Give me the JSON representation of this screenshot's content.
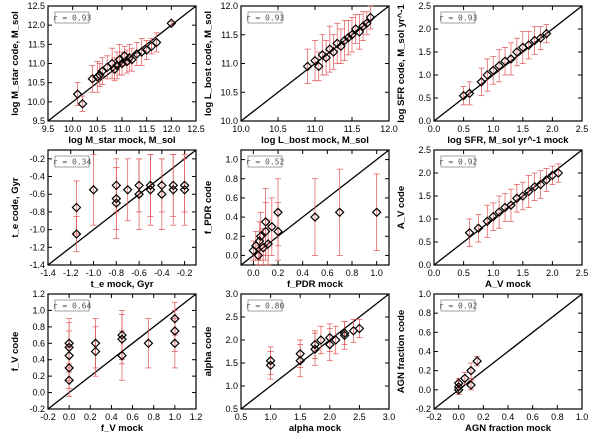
{
  "chart_data": [
    {
      "type": "scatter",
      "xlabel": "log M_star mock, M_sol",
      "ylabel": "log M_star code, M_sol",
      "annotation": "r = 0.93",
      "xlim": [
        9.5,
        12.5
      ],
      "ylim": [
        9.5,
        12.5
      ],
      "xticks": [
        9.5,
        10.0,
        10.5,
        11.0,
        11.5,
        12.0,
        12.5
      ],
      "yticks": [
        9.5,
        10.0,
        10.5,
        11.0,
        11.5,
        12.0,
        12.5
      ],
      "x": [
        10.1,
        10.2,
        10.4,
        10.5,
        10.55,
        10.6,
        10.7,
        10.8,
        10.85,
        10.9,
        10.95,
        11.0,
        11.05,
        11.1,
        11.15,
        11.2,
        11.3,
        11.4,
        11.5,
        11.6,
        11.7,
        12.0
      ],
      "y": [
        10.2,
        9.95,
        10.6,
        10.65,
        10.7,
        10.8,
        10.9,
        11.0,
        10.85,
        10.95,
        11.1,
        11.0,
        11.2,
        11.05,
        11.15,
        11.1,
        11.25,
        11.3,
        11.35,
        11.45,
        11.55,
        12.05
      ],
      "yerr": [
        0.3,
        0.2,
        0.35,
        0.4,
        0.3,
        0.35,
        0.3,
        0.4,
        0.3,
        0.35,
        0.4,
        0.3,
        0.25,
        0.3,
        0.35,
        0.3,
        0.3,
        0.35,
        0.25,
        0.2,
        0.25,
        0.05
      ]
    },
    {
      "type": "scatter",
      "xlabel": "log L_bost mock, M_sol",
      "ylabel": "log L_bost code, M_sol",
      "annotation": "r = 0.93",
      "xlim": [
        10.0,
        12.0
      ],
      "ylim": [
        10.0,
        12.0
      ],
      "xticks": [
        10.0,
        10.5,
        11.0,
        11.5,
        12.0
      ],
      "yticks": [
        10.0,
        10.5,
        11.0,
        11.5,
        12.0
      ],
      "x": [
        10.9,
        11.0,
        11.05,
        11.1,
        11.15,
        11.2,
        11.25,
        11.3,
        11.35,
        11.4,
        11.45,
        11.5,
        11.55,
        11.6,
        11.65,
        11.7,
        11.75
      ],
      "y": [
        10.95,
        11.05,
        10.95,
        11.15,
        11.1,
        11.25,
        11.2,
        11.35,
        11.3,
        11.4,
        11.45,
        11.5,
        11.6,
        11.55,
        11.65,
        11.7,
        11.8
      ],
      "yerr": [
        0.3,
        0.35,
        0.25,
        0.35,
        0.3,
        0.4,
        0.3,
        0.35,
        0.3,
        0.35,
        0.3,
        0.3,
        0.25,
        0.3,
        0.25,
        0.2,
        0.2
      ]
    },
    {
      "type": "scatter",
      "xlabel": "log SFR, M_sol yr^-1 mock",
      "ylabel": "log SFR code, M_sol yr^-1",
      "annotation": "r = 0.93",
      "xlim": [
        0.0,
        2.5
      ],
      "ylim": [
        0.0,
        2.5
      ],
      "xticks": [
        0.0,
        0.5,
        1.0,
        1.5,
        2.0,
        2.5
      ],
      "yticks": [
        0.0,
        0.5,
        1.0,
        1.5,
        2.0,
        2.5
      ],
      "x": [
        0.5,
        0.6,
        0.8,
        0.9,
        1.0,
        1.1,
        1.2,
        1.3,
        1.4,
        1.5,
        1.6,
        1.7,
        1.8,
        1.9
      ],
      "y": [
        0.55,
        0.6,
        0.85,
        1.0,
        1.1,
        1.2,
        1.3,
        1.35,
        1.5,
        1.6,
        1.65,
        1.75,
        1.8,
        1.9
      ],
      "yerr": [
        0.2,
        0.25,
        0.3,
        0.35,
        0.3,
        0.35,
        0.3,
        0.35,
        0.3,
        0.35,
        0.3,
        0.3,
        0.25,
        0.2
      ]
    },
    {
      "type": "scatter",
      "xlabel": "t_e mock, Gyr",
      "ylabel": "t_e code, Gyr",
      "annotation": "r = 0.34",
      "xlim": [
        -1.4,
        -0.1
      ],
      "ylim": [
        -1.4,
        -0.1
      ],
      "xticks": [
        -1.4,
        -1.2,
        -1.0,
        -0.8,
        -0.6,
        -0.4,
        -0.2
      ],
      "yticks": [
        -1.4,
        -1.2,
        -1.0,
        -0.8,
        -0.6,
        -0.4,
        -0.2
      ],
      "x": [
        -1.15,
        -1.15,
        -1.0,
        -0.8,
        -0.8,
        -0.8,
        -0.7,
        -0.6,
        -0.6,
        -0.5,
        -0.5,
        -0.4,
        -0.4,
        -0.3,
        -0.3,
        -0.2,
        -0.2
      ],
      "y": [
        -1.05,
        -0.75,
        -0.55,
        -0.5,
        -0.65,
        -0.7,
        -0.55,
        -0.5,
        -0.6,
        -0.5,
        -0.55,
        -0.5,
        -0.6,
        -0.5,
        -0.55,
        -0.5,
        -0.55
      ],
      "yerr": [
        0.2,
        0.3,
        0.4,
        0.3,
        0.35,
        0.4,
        0.35,
        0.3,
        0.4,
        0.35,
        0.4,
        0.3,
        0.4,
        0.35,
        0.4,
        0.3,
        0.4
      ]
    },
    {
      "type": "scatter",
      "xlabel": "f_PDR mock",
      "ylabel": "f_PDR code",
      "annotation": "r = 0.52",
      "xlim": [
        -0.1,
        1.1
      ],
      "ylim": [
        -0.1,
        1.1
      ],
      "xticks": [
        0.0,
        0.2,
        0.4,
        0.6,
        0.8,
        1.0
      ],
      "yticks": [
        0.0,
        0.2,
        0.4,
        0.6,
        0.8,
        1.0
      ],
      "x": [
        0.0,
        0.02,
        0.04,
        0.05,
        0.06,
        0.08,
        0.1,
        0.1,
        0.12,
        0.15,
        0.2,
        0.2,
        0.5,
        0.7,
        1.0
      ],
      "y": [
        0.05,
        0.1,
        0.0,
        0.15,
        0.2,
        0.08,
        0.25,
        0.35,
        0.12,
        0.3,
        0.45,
        0.25,
        0.4,
        0.45,
        0.45
      ],
      "yerr": [
        0.1,
        0.15,
        0.1,
        0.2,
        0.25,
        0.2,
        0.3,
        0.35,
        0.25,
        0.3,
        0.35,
        0.3,
        0.4,
        0.45,
        0.4
      ]
    },
    {
      "type": "scatter",
      "xlabel": "A_V mock",
      "ylabel": "A_V code",
      "annotation": "r = 0.92",
      "xlim": [
        0.0,
        2.5
      ],
      "ylim": [
        0.0,
        2.5
      ],
      "xticks": [
        0.0,
        0.5,
        1.0,
        1.5,
        2.0,
        2.5
      ],
      "yticks": [
        0.0,
        0.5,
        1.0,
        1.5,
        2.0,
        2.5
      ],
      "x": [
        0.6,
        0.75,
        0.9,
        1.0,
        1.1,
        1.2,
        1.3,
        1.4,
        1.5,
        1.6,
        1.7,
        1.8,
        1.9,
        2.0,
        2.1
      ],
      "y": [
        0.7,
        0.8,
        0.95,
        1.05,
        1.15,
        1.25,
        1.3,
        1.45,
        1.5,
        1.6,
        1.7,
        1.75,
        1.85,
        1.95,
        2.0
      ],
      "yerr": [
        0.3,
        0.3,
        0.35,
        0.3,
        0.35,
        0.3,
        0.35,
        0.3,
        0.3,
        0.35,
        0.3,
        0.3,
        0.25,
        0.2,
        0.2
      ]
    },
    {
      "type": "scatter",
      "xlabel": "f_V mock",
      "ylabel": "f_V code",
      "annotation": "r = 0.64",
      "xlim": [
        -0.2,
        1.2
      ],
      "ylim": [
        -0.2,
        1.2
      ],
      "xticks": [
        -0.2,
        0.0,
        0.2,
        0.4,
        0.6,
        0.8,
        1.0,
        1.2
      ],
      "yticks": [
        -0.2,
        0.0,
        0.2,
        0.4,
        0.6,
        0.8,
        1.0,
        1.2
      ],
      "x": [
        0.0,
        0.0,
        0.0,
        0.0,
        0.0,
        0.25,
        0.25,
        0.5,
        0.5,
        0.5,
        0.75,
        1.0,
        1.0,
        1.0
      ],
      "y": [
        0.15,
        0.3,
        0.45,
        0.55,
        0.6,
        0.5,
        0.6,
        0.45,
        0.65,
        0.7,
        0.6,
        0.6,
        0.75,
        0.9
      ],
      "yerr": [
        0.2,
        0.25,
        0.3,
        0.3,
        0.3,
        0.3,
        0.3,
        0.3,
        0.3,
        0.3,
        0.3,
        0.3,
        0.25,
        0.2
      ]
    },
    {
      "type": "scatter",
      "xlabel": "alpha mock",
      "ylabel": "alpha code",
      "annotation": "r = 0.80",
      "xlim": [
        0.5,
        3.0
      ],
      "ylim": [
        0.5,
        3.0
      ],
      "xticks": [
        0.5,
        1.0,
        1.5,
        2.0,
        2.5,
        3.0
      ],
      "yticks": [
        0.5,
        1.0,
        1.5,
        2.0,
        2.5,
        3.0
      ],
      "x": [
        1.0,
        1.0,
        1.5,
        1.5,
        1.75,
        1.75,
        1.85,
        2.0,
        2.0,
        2.1,
        2.25,
        2.25,
        2.4,
        2.5
      ],
      "y": [
        1.45,
        1.55,
        1.55,
        1.7,
        1.8,
        1.9,
        2.0,
        1.9,
        2.05,
        2.0,
        2.1,
        2.15,
        2.2,
        2.25
      ],
      "yerr": [
        0.3,
        0.3,
        0.35,
        0.3,
        0.35,
        0.3,
        0.3,
        0.35,
        0.3,
        0.3,
        0.3,
        0.25,
        0.25,
        0.2
      ]
    },
    {
      "type": "scatter",
      "xlabel": "AGN fraction mock",
      "ylabel": "AGN fraction code",
      "annotation": "r = 0.92",
      "xlim": [
        -0.2,
        1.0
      ],
      "ylim": [
        -0.2,
        1.0
      ],
      "xticks": [
        -0.2,
        0.0,
        0.2,
        0.4,
        0.6,
        0.8,
        1.0
      ],
      "yticks": [
        -0.2,
        0.0,
        0.2,
        0.4,
        0.6,
        0.8,
        1.0
      ],
      "x": [
        0.0,
        0.0,
        0.0,
        0.05,
        0.1,
        0.1,
        0.15
      ],
      "y": [
        0.0,
        0.03,
        0.07,
        0.12,
        0.05,
        0.2,
        0.3
      ],
      "yerr": [
        0.05,
        0.06,
        0.05,
        0.06,
        0.05,
        0.08,
        0.05
      ]
    }
  ]
}
